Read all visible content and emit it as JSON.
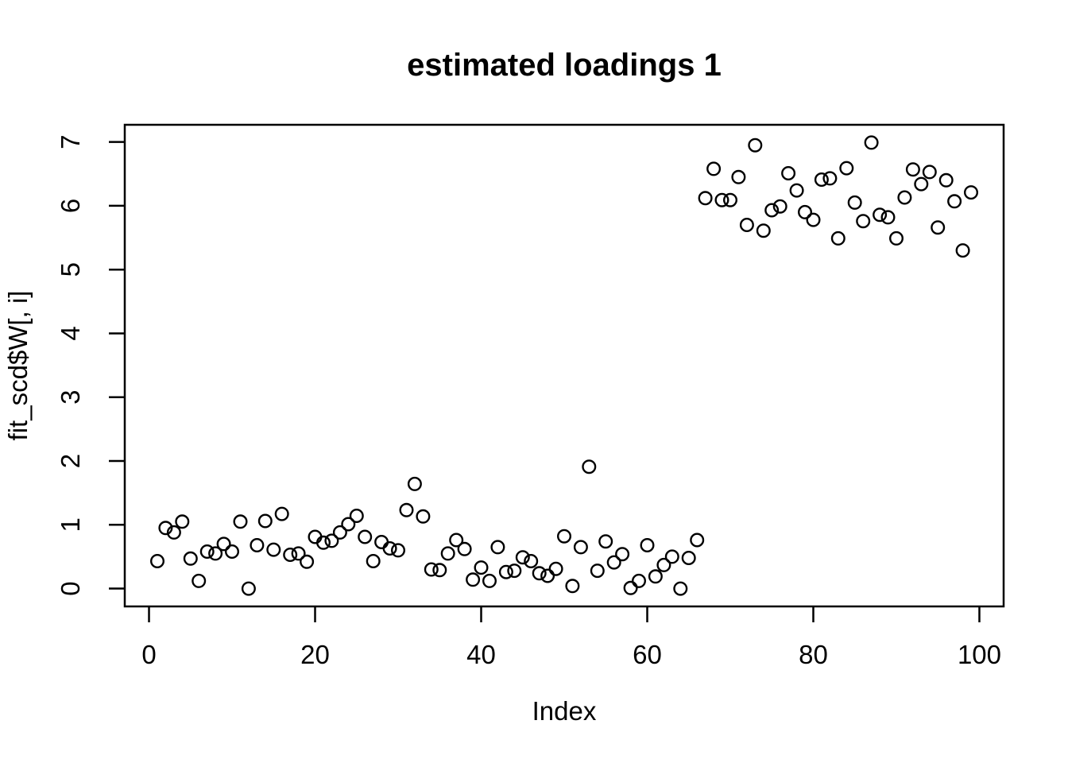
{
  "figure": {
    "background": "#ffffff",
    "foreground": "#000000"
  },
  "chart_data": {
    "type": "scatter",
    "title": "estimated loadings 1",
    "xlabel": "Index",
    "ylabel": "fit_scd$W[, i]",
    "marker": "open-circle",
    "marker_color": "#000000",
    "grid": false,
    "legend": null,
    "xlim": [
      0,
      100
    ],
    "ylim": [
      0,
      7
    ],
    "range_padding_frac": 0.04,
    "xticks": [
      0,
      20,
      40,
      60,
      80,
      100
    ],
    "yticks": [
      0,
      1,
      2,
      3,
      4,
      5,
      6,
      7
    ],
    "x": [
      1,
      2,
      3,
      4,
      5,
      6,
      7,
      8,
      9,
      10,
      11,
      12,
      13,
      14,
      15,
      16,
      17,
      18,
      19,
      20,
      21,
      22,
      23,
      24,
      25,
      26,
      27,
      28,
      29,
      30,
      31,
      32,
      33,
      34,
      35,
      36,
      37,
      38,
      39,
      40,
      41,
      42,
      43,
      44,
      45,
      46,
      47,
      48,
      49,
      50,
      51,
      52,
      53,
      54,
      55,
      56,
      57,
      58,
      59,
      60,
      61,
      62,
      63,
      64,
      65,
      66,
      67,
      68,
      69,
      70,
      71,
      72,
      73,
      74,
      75,
      76,
      77,
      78,
      79,
      80,
      81,
      82,
      83,
      84,
      85,
      86,
      87,
      88,
      89,
      90,
      91,
      92,
      93,
      94,
      95,
      96,
      97,
      98,
      99
    ],
    "y": [
      0.43,
      0.95,
      0.88,
      1.05,
      0.47,
      0.12,
      0.58,
      0.55,
      0.7,
      0.58,
      1.05,
      0.0,
      0.68,
      1.06,
      0.61,
      1.17,
      0.53,
      0.55,
      0.42,
      0.81,
      0.72,
      0.75,
      0.88,
      1.01,
      1.14,
      0.81,
      0.43,
      0.73,
      0.63,
      0.6,
      1.23,
      1.64,
      1.13,
      0.3,
      0.29,
      0.55,
      0.76,
      0.62,
      0.14,
      0.33,
      0.12,
      0.65,
      0.26,
      0.28,
      0.49,
      0.43,
      0.24,
      0.2,
      0.31,
      0.82,
      0.04,
      0.65,
      1.91,
      0.28,
      0.74,
      0.41,
      0.54,
      0.01,
      0.12,
      0.68,
      0.19,
      0.37,
      0.5,
      0.0,
      0.48,
      0.76,
      6.12,
      6.58,
      6.09,
      6.09,
      6.45,
      5.7,
      6.95,
      5.61,
      5.93,
      5.99,
      6.51,
      6.24,
      5.9,
      5.78,
      6.41,
      6.43,
      5.49,
      6.59,
      6.05,
      5.76,
      6.99,
      5.86,
      5.82,
      5.49,
      6.13,
      6.57,
      6.34,
      6.53,
      5.66,
      6.4,
      6.07,
      5.3,
      6.21
    ]
  }
}
